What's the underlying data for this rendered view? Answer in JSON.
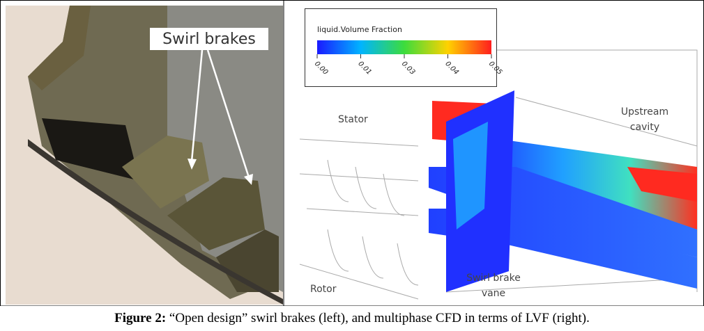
{
  "left_panel": {
    "label": "Swirl brakes"
  },
  "right_panel": {
    "colorbar": {
      "title": "liquid.Volume Fraction",
      "ticks": [
        "0.00",
        "0.01",
        "0.03",
        "0.04",
        "0.05"
      ]
    },
    "labels": {
      "stator": "Stator",
      "upstream_cavity": [
        "Upstream",
        "cavity"
      ],
      "rotor": "Rotor",
      "swirl_brake_vane": [
        "Swirl brake",
        "vane"
      ]
    }
  },
  "caption": {
    "label": "Figure 2:",
    "text": "“Open design” swirl brakes (left), and multiphase CFD in terms of LVF (right)."
  }
}
